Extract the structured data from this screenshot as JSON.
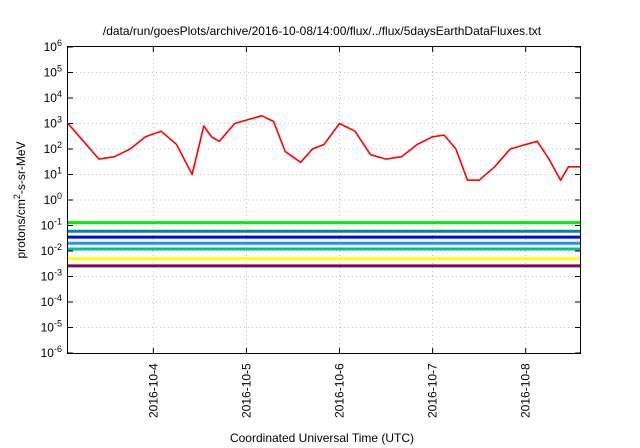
{
  "chart_data": {
    "type": "line",
    "title": "/data/run/goesPlots/archive/2016-10-08/14:00/flux/../flux/5daysEarthDataFluxes.txt",
    "xlabel": "Coordinated Universal Time (UTC)",
    "ylabel": {
      "pre": "protons/cm",
      "sup": "2",
      "post": "-s-sr-MeV"
    },
    "y_scale": "log",
    "ylim": [
      1e-06,
      1000000.0
    ],
    "y_ticks": [
      {
        "exp": -6,
        "label_base": "10",
        "label_exp": "-6"
      },
      {
        "exp": -5,
        "label_base": "10",
        "label_exp": "-5"
      },
      {
        "exp": -4,
        "label_base": "10",
        "label_exp": "-4"
      },
      {
        "exp": -3,
        "label_base": "10",
        "label_exp": "-3"
      },
      {
        "exp": -2,
        "label_base": "10",
        "label_exp": "-2"
      },
      {
        "exp": -1,
        "label_base": "10",
        "label_exp": "-1"
      },
      {
        "exp": 0,
        "label_base": "10",
        "label_exp": "0"
      },
      {
        "exp": 1,
        "label_base": "10",
        "label_exp": "1"
      },
      {
        "exp": 2,
        "label_base": "10",
        "label_exp": "2"
      },
      {
        "exp": 3,
        "label_base": "10",
        "label_exp": "3"
      },
      {
        "exp": 4,
        "label_base": "10",
        "label_exp": "4"
      },
      {
        "exp": 5,
        "label_base": "10",
        "label_exp": "5"
      },
      {
        "exp": 6,
        "label_base": "10",
        "label_exp": "6"
      }
    ],
    "xlim": [
      "2016-10-03 02:00",
      "2016-10-08 14:00"
    ],
    "x_ticks": [
      "2016-10-4",
      "2016-10-5",
      "2016-10-6",
      "2016-10-7",
      "2016-10-8"
    ],
    "x_tick_dates": [
      "2016-10-04 00:00",
      "2016-10-05 00:00",
      "2016-10-06 00:00",
      "2016-10-07 00:00",
      "2016-10-08 00:00"
    ],
    "grid": true,
    "legend": "none",
    "series": [
      {
        "color": "#ff0000",
        "x": [
          "2016-10-03 02:00",
          "2016-10-03 06:00",
          "2016-10-03 10:00",
          "2016-10-03 14:00",
          "2016-10-03 18:00",
          "2016-10-03 22:00",
          "2016-10-04 02:00",
          "2016-10-04 06:00",
          "2016-10-04 10:00",
          "2016-10-04 13:00",
          "2016-10-04 15:00",
          "2016-10-04 17:00",
          "2016-10-04 21:00",
          "2016-10-05 01:00",
          "2016-10-05 04:00",
          "2016-10-05 07:00",
          "2016-10-05 10:00",
          "2016-10-05 14:00",
          "2016-10-05 17:00",
          "2016-10-05 20:00",
          "2016-10-06 00:00",
          "2016-10-06 04:00",
          "2016-10-06 08:00",
          "2016-10-06 12:00",
          "2016-10-06 16:00",
          "2016-10-06 20:00",
          "2016-10-07 00:00",
          "2016-10-07 03:00",
          "2016-10-07 06:00",
          "2016-10-07 09:00",
          "2016-10-07 12:00",
          "2016-10-07 16:00",
          "2016-10-07 20:00",
          "2016-10-08 00:00",
          "2016-10-08 03:00",
          "2016-10-08 06:00",
          "2016-10-08 09:00",
          "2016-10-08 11:00",
          "2016-10-08 14:00"
        ],
        "y": [
          1000,
          200,
          40,
          50,
          100,
          300,
          500,
          150,
          10,
          800,
          300,
          200,
          1000,
          1500,
          2000,
          1200,
          80,
          30,
          100,
          150,
          1000,
          500,
          60,
          40,
          50,
          150,
          300,
          350,
          100,
          6,
          6,
          20,
          100,
          150,
          200,
          40,
          6,
          20,
          20
        ]
      },
      {
        "color": "#00ee00",
        "x": [
          "2016-10-03 02:00",
          "2016-10-08 14:00"
        ],
        "y": [
          0.13,
          0.13
        ]
      },
      {
        "color": "#008b8b",
        "x": [
          "2016-10-03 02:00",
          "2016-10-08 14:00"
        ],
        "y": [
          0.06,
          0.06
        ]
      },
      {
        "color": "#0000ff",
        "x": [
          "2016-10-03 02:00",
          "2016-10-08 14:00"
        ],
        "y": [
          0.035,
          0.035
        ]
      },
      {
        "color": "#1e90ff",
        "x": [
          "2016-10-03 02:00",
          "2016-10-08 14:00"
        ],
        "y": [
          0.02,
          0.02
        ]
      },
      {
        "color": "#00bfa5",
        "x": [
          "2016-10-03 02:00",
          "2016-10-08 14:00"
        ],
        "y": [
          0.012,
          0.012
        ]
      },
      {
        "color": "#ffff00",
        "x": [
          "2016-10-03 02:00",
          "2016-10-08 14:00"
        ],
        "y": [
          0.005,
          0.005
        ]
      },
      {
        "color": "#800060",
        "x": [
          "2016-10-03 02:00",
          "2016-10-08 14:00"
        ],
        "y": [
          0.0026,
          0.0026
        ]
      }
    ]
  }
}
